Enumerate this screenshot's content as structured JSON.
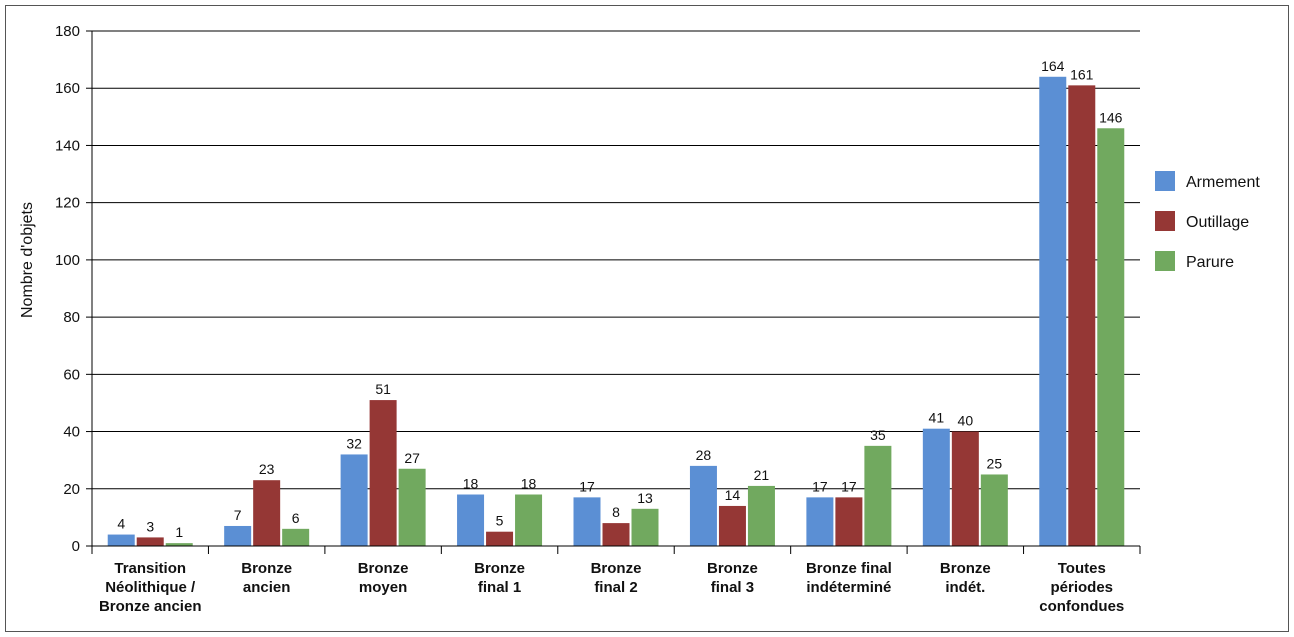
{
  "chart_data": {
    "type": "bar",
    "ylabel": "Nombre d'objets",
    "ylim": [
      0,
      180
    ],
    "yticks": [
      0,
      20,
      40,
      60,
      80,
      100,
      120,
      140,
      160,
      180
    ],
    "grid": true,
    "legend_position": "right",
    "categories": [
      [
        "Transition",
        "Néolithique /",
        "Bronze ancien"
      ],
      [
        "Bronze",
        "ancien"
      ],
      [
        "Bronze",
        "moyen"
      ],
      [
        "Bronze",
        "final 1"
      ],
      [
        "Bronze",
        "final 2"
      ],
      [
        "Bronze",
        "final 3"
      ],
      [
        "Bronze final",
        "indéterminé"
      ],
      [
        "Bronze",
        "indét."
      ],
      [
        "Toutes",
        "périodes",
        "confondues"
      ]
    ],
    "series": [
      {
        "name": "Armement",
        "color": "#5b8fd4",
        "values": [
          4,
          7,
          32,
          18,
          17,
          28,
          17,
          41,
          164
        ]
      },
      {
        "name": "Outillage",
        "color": "#953735",
        "values": [
          3,
          23,
          51,
          5,
          8,
          14,
          17,
          40,
          161
        ]
      },
      {
        "name": "Parure",
        "color": "#71a95f",
        "values": [
          1,
          6,
          27,
          18,
          13,
          21,
          35,
          25,
          146
        ]
      }
    ]
  }
}
